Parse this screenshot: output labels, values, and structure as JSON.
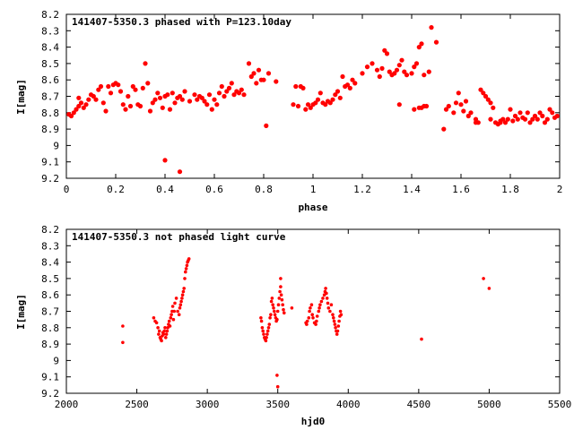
{
  "chart_data": [
    {
      "type": "scatter",
      "title": "141407-5350.3 phased with P=123.10day",
      "xlabel": "phase",
      "ylabel": "I[mag]",
      "xlim": [
        0,
        2
      ],
      "ylim": [
        8.2,
        9.2
      ],
      "y_inverted": true,
      "grid": false,
      "marker_color": "#ff0000",
      "xticks": [
        "0",
        "0.2",
        "0.4",
        "0.6",
        "0.8",
        "1",
        "1.2",
        "1.4",
        "1.6",
        "1.8",
        "2"
      ],
      "yticks": [
        "8.2",
        "8.3",
        "8.4",
        "8.5",
        "8.6",
        "8.7",
        "8.8",
        "8.9",
        "9",
        "9.1",
        "9.2"
      ],
      "points": [
        [
          0.01,
          8.81
        ],
        [
          0.02,
          8.82
        ],
        [
          0.03,
          8.8
        ],
        [
          0.04,
          8.78
        ],
        [
          0.05,
          8.76
        ],
        [
          0.05,
          8.71
        ],
        [
          0.06,
          8.74
        ],
        [
          0.07,
          8.77
        ],
        [
          0.08,
          8.75
        ],
        [
          0.09,
          8.72
        ],
        [
          0.1,
          8.69
        ],
        [
          0.11,
          8.7
        ],
        [
          0.12,
          8.72
        ],
        [
          0.13,
          8.66
        ],
        [
          0.14,
          8.64
        ],
        [
          0.15,
          8.74
        ],
        [
          0.16,
          8.79
        ],
        [
          0.17,
          8.64
        ],
        [
          0.18,
          8.68
        ],
        [
          0.19,
          8.63
        ],
        [
          0.2,
          8.62
        ],
        [
          0.21,
          8.63
        ],
        [
          0.22,
          8.67
        ],
        [
          0.23,
          8.75
        ],
        [
          0.24,
          8.78
        ],
        [
          0.25,
          8.7
        ],
        [
          0.26,
          8.76
        ],
        [
          0.27,
          8.64
        ],
        [
          0.28,
          8.66
        ],
        [
          0.29,
          8.75
        ],
        [
          0.3,
          8.76
        ],
        [
          0.31,
          8.65
        ],
        [
          0.32,
          8.5
        ],
        [
          0.33,
          8.62
        ],
        [
          0.34,
          8.79
        ],
        [
          0.35,
          8.74
        ],
        [
          0.36,
          8.72
        ],
        [
          0.37,
          8.68
        ],
        [
          0.38,
          8.71
        ],
        [
          0.39,
          8.77
        ],
        [
          0.4,
          8.7
        ],
        [
          0.41,
          8.69
        ],
        [
          0.42,
          8.78
        ],
        [
          0.43,
          8.68
        ],
        [
          0.44,
          8.74
        ],
        [
          0.45,
          8.71
        ],
        [
          0.46,
          8.7
        ],
        [
          0.47,
          8.72
        ],
        [
          0.48,
          8.67
        ],
        [
          0.5,
          8.73
        ],
        [
          0.52,
          8.69
        ],
        [
          0.53,
          8.72
        ],
        [
          0.54,
          8.7
        ],
        [
          0.55,
          8.71
        ],
        [
          0.56,
          8.73
        ],
        [
          0.57,
          8.75
        ],
        [
          0.58,
          8.69
        ],
        [
          0.59,
          8.78
        ],
        [
          0.6,
          8.72
        ],
        [
          0.61,
          8.75
        ],
        [
          0.62,
          8.68
        ],
        [
          0.63,
          8.64
        ],
        [
          0.64,
          8.7
        ],
        [
          0.65,
          8.67
        ],
        [
          0.66,
          8.65
        ],
        [
          0.67,
          8.62
        ],
        [
          0.68,
          8.69
        ],
        [
          0.69,
          8.67
        ],
        [
          0.7,
          8.68
        ],
        [
          0.71,
          8.66
        ],
        [
          0.72,
          8.69
        ],
        [
          0.74,
          8.5
        ],
        [
          0.75,
          8.58
        ],
        [
          0.76,
          8.56
        ],
        [
          0.77,
          8.62
        ],
        [
          0.78,
          8.54
        ],
        [
          0.79,
          8.6
        ],
        [
          0.8,
          8.6
        ],
        [
          0.81,
          8.88
        ],
        [
          0.82,
          8.56
        ],
        [
          0.85,
          8.61
        ],
        [
          0.4,
          9.09
        ],
        [
          0.46,
          9.16
        ],
        [
          0.92,
          8.75
        ],
        [
          0.93,
          8.64
        ],
        [
          0.94,
          8.76
        ],
        [
          0.95,
          8.64
        ],
        [
          0.96,
          8.65
        ],
        [
          0.97,
          8.78
        ],
        [
          0.98,
          8.75
        ],
        [
          0.99,
          8.77
        ],
        [
          1.0,
          8.75
        ],
        [
          1.01,
          8.74
        ],
        [
          1.02,
          8.72
        ],
        [
          1.03,
          8.68
        ],
        [
          1.04,
          8.74
        ],
        [
          1.05,
          8.75
        ],
        [
          1.06,
          8.73
        ],
        [
          1.07,
          8.74
        ],
        [
          1.08,
          8.72
        ],
        [
          1.09,
          8.69
        ],
        [
          1.1,
          8.67
        ],
        [
          1.11,
          8.71
        ],
        [
          1.12,
          8.58
        ],
        [
          1.13,
          8.64
        ],
        [
          1.14,
          8.63
        ],
        [
          1.15,
          8.65
        ],
        [
          1.16,
          8.6
        ],
        [
          1.17,
          8.62
        ],
        [
          1.2,
          8.56
        ],
        [
          1.22,
          8.52
        ],
        [
          1.24,
          8.5
        ],
        [
          1.26,
          8.54
        ],
        [
          1.27,
          8.58
        ],
        [
          1.28,
          8.53
        ],
        [
          1.29,
          8.42
        ],
        [
          1.3,
          8.44
        ],
        [
          1.31,
          8.55
        ],
        [
          1.32,
          8.57
        ],
        [
          1.33,
          8.56
        ],
        [
          1.34,
          8.54
        ],
        [
          1.35,
          8.51
        ],
        [
          1.36,
          8.48
        ],
        [
          1.37,
          8.55
        ],
        [
          1.38,
          8.57
        ],
        [
          1.4,
          8.56
        ],
        [
          1.41,
          8.52
        ],
        [
          1.42,
          8.5
        ],
        [
          1.43,
          8.4
        ],
        [
          1.44,
          8.38
        ],
        [
          1.45,
          8.57
        ],
        [
          1.46,
          8.76
        ],
        [
          1.47,
          8.55
        ],
        [
          1.48,
          8.28
        ],
        [
          1.5,
          8.37
        ],
        [
          1.35,
          8.75
        ],
        [
          1.41,
          8.78
        ],
        [
          1.43,
          8.77
        ],
        [
          1.44,
          8.77
        ],
        [
          1.45,
          8.76
        ],
        [
          1.53,
          8.9
        ],
        [
          1.54,
          8.78
        ],
        [
          1.55,
          8.76
        ],
        [
          1.57,
          8.8
        ],
        [
          1.58,
          8.74
        ],
        [
          1.59,
          8.68
        ],
        [
          1.6,
          8.75
        ],
        [
          1.61,
          8.79
        ],
        [
          1.62,
          8.73
        ],
        [
          1.63,
          8.82
        ],
        [
          1.64,
          8.8
        ],
        [
          1.66,
          8.84
        ],
        [
          1.67,
          8.86
        ],
        [
          1.68,
          8.66
        ],
        [
          1.69,
          8.68
        ],
        [
          1.7,
          8.7
        ],
        [
          1.71,
          8.72
        ],
        [
          1.72,
          8.74
        ],
        [
          1.73,
          8.77
        ],
        [
          1.74,
          8.86
        ],
        [
          1.75,
          8.87
        ],
        [
          1.76,
          8.85
        ],
        [
          1.77,
          8.84
        ],
        [
          1.78,
          8.86
        ],
        [
          1.79,
          8.84
        ],
        [
          1.8,
          8.78
        ],
        [
          1.81,
          8.85
        ],
        [
          1.82,
          8.82
        ],
        [
          1.83,
          8.84
        ],
        [
          1.84,
          8.8
        ],
        [
          1.85,
          8.83
        ],
        [
          1.86,
          8.84
        ],
        [
          1.87,
          8.8
        ],
        [
          1.88,
          8.86
        ],
        [
          1.89,
          8.84
        ],
        [
          1.9,
          8.82
        ],
        [
          1.91,
          8.84
        ],
        [
          1.92,
          8.8
        ],
        [
          1.93,
          8.82
        ],
        [
          1.94,
          8.86
        ],
        [
          1.95,
          8.84
        ],
        [
          1.96,
          8.78
        ],
        [
          1.97,
          8.8
        ],
        [
          1.98,
          8.83
        ],
        [
          1.99,
          8.82
        ],
        [
          1.66,
          8.86
        ],
        [
          1.72,
          8.84
        ],
        [
          1.76,
          8.86
        ]
      ]
    },
    {
      "type": "scatter",
      "title": "141407-5350.3 not phased light curve",
      "xlabel": "hjd0",
      "ylabel": "I[mag]",
      "xlim": [
        2000,
        5500
      ],
      "ylim": [
        8.2,
        9.2
      ],
      "y_inverted": true,
      "grid": false,
      "marker_color": "#ff0000",
      "xticks": [
        "2000",
        "2500",
        "3000",
        "3500",
        "4000",
        "4500",
        "5000",
        "5500"
      ],
      "yticks": [
        "8.2",
        "8.3",
        "8.4",
        "8.5",
        "8.6",
        "8.7",
        "8.8",
        "8.9",
        "9",
        "9.1",
        "9.2"
      ],
      "points": [
        [
          2400,
          8.79
        ],
        [
          2400,
          8.89
        ],
        [
          2620,
          8.74
        ],
        [
          2630,
          8.76
        ],
        [
          2640,
          8.77
        ],
        [
          2650,
          8.8
        ],
        [
          2655,
          8.84
        ],
        [
          2660,
          8.82
        ],
        [
          2665,
          8.86
        ],
        [
          2670,
          8.87
        ],
        [
          2675,
          8.88
        ],
        [
          2680,
          8.85
        ],
        [
          2685,
          8.83
        ],
        [
          2690,
          8.84
        ],
        [
          2695,
          8.82
        ],
        [
          2700,
          8.8
        ],
        [
          2705,
          8.86
        ],
        [
          2710,
          8.84
        ],
        [
          2715,
          8.82
        ],
        [
          2720,
          8.8
        ],
        [
          2725,
          8.78
        ],
        [
          2730,
          8.76
        ],
        [
          2735,
          8.79
        ],
        [
          2740,
          8.74
        ],
        [
          2745,
          8.72
        ],
        [
          2750,
          8.7
        ],
        [
          2755,
          8.67
        ],
        [
          2760,
          8.75
        ],
        [
          2765,
          8.7
        ],
        [
          2770,
          8.65
        ],
        [
          2780,
          8.62
        ],
        [
          2790,
          8.7
        ],
        [
          2800,
          8.72
        ],
        [
          2805,
          8.68
        ],
        [
          2810,
          8.66
        ],
        [
          2815,
          8.64
        ],
        [
          2820,
          8.62
        ],
        [
          2825,
          8.6
        ],
        [
          2830,
          8.58
        ],
        [
          2835,
          8.56
        ],
        [
          2840,
          8.5
        ],
        [
          2845,
          8.46
        ],
        [
          2850,
          8.44
        ],
        [
          2855,
          8.42
        ],
        [
          2860,
          8.4
        ],
        [
          2865,
          8.39
        ],
        [
          2870,
          8.38
        ],
        [
          3380,
          8.74
        ],
        [
          3385,
          8.76
        ],
        [
          3390,
          8.8
        ],
        [
          3395,
          8.82
        ],
        [
          3400,
          8.84
        ],
        [
          3405,
          8.86
        ],
        [
          3410,
          8.87
        ],
        [
          3415,
          8.88
        ],
        [
          3420,
          8.86
        ],
        [
          3425,
          8.84
        ],
        [
          3430,
          8.82
        ],
        [
          3435,
          8.8
        ],
        [
          3440,
          8.78
        ],
        [
          3445,
          8.74
        ],
        [
          3450,
          8.72
        ],
        [
          3455,
          8.64
        ],
        [
          3460,
          8.62
        ],
        [
          3465,
          8.66
        ],
        [
          3470,
          8.68
        ],
        [
          3475,
          8.7
        ],
        [
          3480,
          8.72
        ],
        [
          3485,
          8.74
        ],
        [
          3490,
          8.76
        ],
        [
          3495,
          8.75
        ],
        [
          3500,
          8.7
        ],
        [
          3505,
          8.66
        ],
        [
          3510,
          8.62
        ],
        [
          3515,
          8.58
        ],
        [
          3520,
          8.55
        ],
        [
          3525,
          8.6
        ],
        [
          3530,
          8.63
        ],
        [
          3535,
          8.66
        ],
        [
          3540,
          8.69
        ],
        [
          3545,
          8.71
        ],
        [
          3495,
          9.09
        ],
        [
          3500,
          9.16
        ],
        [
          3520,
          8.5
        ],
        [
          3600,
          8.68
        ],
        [
          3700,
          8.77
        ],
        [
          3705,
          8.78
        ],
        [
          3710,
          8.76
        ],
        [
          3720,
          8.74
        ],
        [
          3725,
          8.7
        ],
        [
          3730,
          8.68
        ],
        [
          3740,
          8.66
        ],
        [
          3745,
          8.72
        ],
        [
          3750,
          8.74
        ],
        [
          3760,
          8.77
        ],
        [
          3770,
          8.78
        ],
        [
          3775,
          8.76
        ],
        [
          3780,
          8.73
        ],
        [
          3790,
          8.7
        ],
        [
          3795,
          8.68
        ],
        [
          3800,
          8.66
        ],
        [
          3810,
          8.64
        ],
        [
          3820,
          8.62
        ],
        [
          3830,
          8.6
        ],
        [
          3835,
          8.58
        ],
        [
          3840,
          8.56
        ],
        [
          3845,
          8.59
        ],
        [
          3850,
          8.62
        ],
        [
          3855,
          8.65
        ],
        [
          3860,
          8.68
        ],
        [
          3870,
          8.7
        ],
        [
          3880,
          8.66
        ],
        [
          3890,
          8.72
        ],
        [
          3895,
          8.74
        ],
        [
          3900,
          8.76
        ],
        [
          3905,
          8.78
        ],
        [
          3910,
          8.8
        ],
        [
          3915,
          8.82
        ],
        [
          3920,
          8.84
        ],
        [
          3925,
          8.82
        ],
        [
          3930,
          8.79
        ],
        [
          3935,
          8.76
        ],
        [
          3940,
          8.73
        ],
        [
          3945,
          8.7
        ],
        [
          3950,
          8.72
        ],
        [
          4520,
          8.87
        ],
        [
          4960,
          8.5
        ],
        [
          5000,
          8.56
        ]
      ]
    }
  ]
}
